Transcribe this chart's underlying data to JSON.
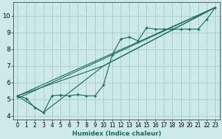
{
  "xlabel": "Humidex (Indice chaleur)",
  "bg_color": "#cce8e8",
  "grid_color": "#aacccc",
  "line_color": "#1a6b5a",
  "xlim": [
    -0.5,
    23.5
  ],
  "ylim": [
    3.8,
    10.8
  ],
  "xticks": [
    0,
    1,
    2,
    3,
    4,
    5,
    6,
    7,
    8,
    9,
    10,
    11,
    12,
    13,
    14,
    15,
    16,
    17,
    18,
    19,
    20,
    21,
    22,
    23
  ],
  "yticks": [
    4,
    5,
    6,
    7,
    8,
    9,
    10
  ],
  "series_main_x": [
    0,
    1,
    2,
    3,
    4,
    5,
    6,
    7,
    8,
    9,
    10,
    11,
    12,
    13,
    14,
    15,
    16,
    17,
    18,
    19,
    20,
    21,
    22,
    23
  ],
  "series_main_y": [
    5.2,
    5.05,
    4.5,
    4.2,
    5.2,
    5.25,
    5.2,
    5.28,
    5.2,
    5.2,
    5.85,
    7.65,
    8.6,
    8.72,
    8.5,
    9.28,
    9.2,
    9.2,
    9.18,
    9.2,
    9.2,
    9.2,
    9.78,
    10.5
  ],
  "line1_x": [
    0,
    23
  ],
  "line1_y": [
    5.2,
    10.5
  ],
  "line2_x": [
    0,
    23
  ],
  "line2_y": [
    5.05,
    10.5
  ],
  "line3_x": [
    0,
    3,
    10,
    23
  ],
  "line3_y": [
    5.2,
    4.2,
    7.0,
    10.5
  ],
  "line4_x": [
    0,
    10,
    23
  ],
  "line4_y": [
    5.2,
    7.0,
    10.5
  ]
}
